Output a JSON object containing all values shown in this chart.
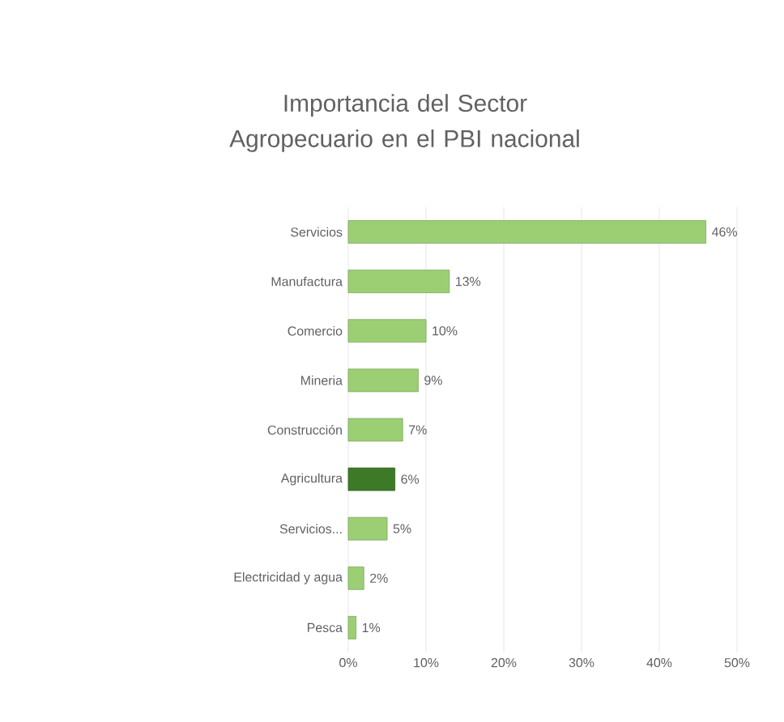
{
  "chart_data": {
    "type": "bar",
    "orientation": "horizontal",
    "title": "Importancia del Sector Agropecuario en el PBI nacional",
    "categories": [
      "Servicios",
      "Manufactura",
      "Comercio",
      "Mineria",
      "Construcción",
      "Agricultura",
      "Servicios...",
      "Electricidad y agua",
      "Pesca"
    ],
    "values": [
      46,
      13,
      10,
      9,
      7,
      6,
      5,
      2,
      1
    ],
    "colors": [
      "#9ccf74",
      "#9ccf74",
      "#9ccf74",
      "#9ccf74",
      "#9ccf74",
      "#3d7a27",
      "#9ccf74",
      "#9ccf74",
      "#9ccf74"
    ],
    "value_labels": [
      "46%",
      "13%",
      "10%",
      "9%",
      "7%",
      "6%",
      "5%",
      "2%",
      "1%"
    ],
    "xlim": [
      0,
      50
    ],
    "xticks": [
      {
        "value": 0,
        "label": "0%"
      },
      {
        "value": 10,
        "label": "10%"
      },
      {
        "value": 20,
        "label": "20%"
      },
      {
        "value": 30,
        "label": "30%"
      },
      {
        "value": 40,
        "label": "40%"
      },
      {
        "value": 50,
        "label": "50%"
      }
    ],
    "grid": "x"
  }
}
